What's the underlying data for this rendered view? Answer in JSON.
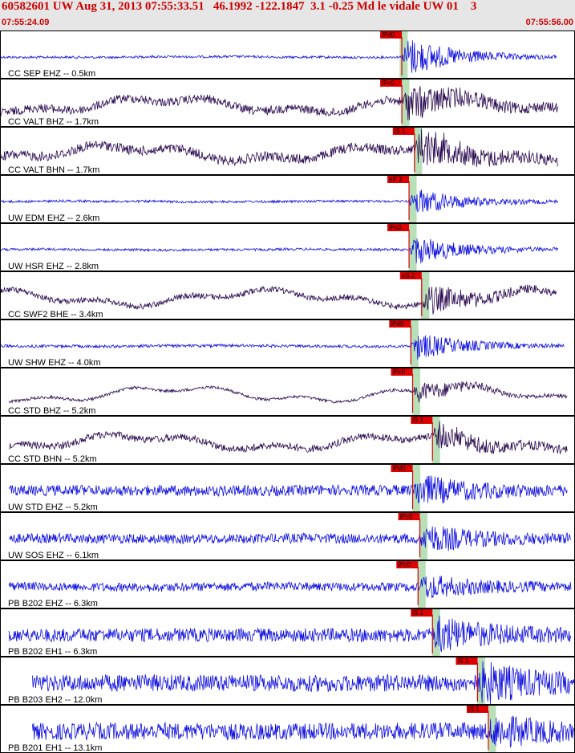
{
  "header": {
    "title": "60582601 UW Aug 31, 2013 07:55:33.51   46.1992 -122.1847  3.1 -0.25 Md le vidale UW 01    3",
    "start_time": "07:55:24.09",
    "end_time": "07:55:56.00"
  },
  "colors": {
    "blue": "#1010e0",
    "dark": "#2a0a50",
    "pick": "#dd0000",
    "band": "#b8e0b8",
    "frame": "#000000"
  },
  "chart_data": {
    "type": "line",
    "xlabel": "",
    "ylabel": "",
    "x_range_s": [
      0,
      31.91
    ],
    "traces": [
      {
        "label": "CC SEP EHZ -- 0.5km",
        "pick": "iPd0",
        "pick_t": 22.3,
        "band_t": 22.4,
        "amp": 0.9,
        "noise": 0.05,
        "color": "blue",
        "t0": 0,
        "t1": 30.9
      },
      {
        "label": "CC VALT BHZ -- 1.7km",
        "pick": "iPc0",
        "pick_t": 22.3,
        "band_t": 22.5,
        "amp": 0.75,
        "noise": 0.18,
        "color": "dark",
        "t0": 0,
        "t1": 31.0
      },
      {
        "label": "CC VALT BHN -- 1.7km",
        "pick": "iS 1",
        "pick_t": 23.0,
        "band_t": 23.2,
        "amp": 0.8,
        "noise": 0.2,
        "color": "dark",
        "t0": 0,
        "t1": 31.0
      },
      {
        "label": "UW EDM EHZ -- 2.6km",
        "pick": "eP 3",
        "pick_t": 22.7,
        "band_t": 22.9,
        "amp": 0.6,
        "noise": 0.05,
        "color": "blue",
        "t0": 0,
        "t1": 31.0
      },
      {
        "label": "UW HSR EHZ -- 2.8km",
        "pick": "iPc0",
        "pick_t": 22.7,
        "band_t": 22.9,
        "amp": 0.65,
        "noise": 0.05,
        "color": "blue",
        "t0": 0,
        "t1": 31.0
      },
      {
        "label": "CC SWF2 BHE -- 3.4km",
        "pick": "eS 2",
        "pick_t": 23.4,
        "band_t": 23.6,
        "amp": 0.6,
        "noise": 0.12,
        "color": "dark",
        "t0": 0,
        "t1": 30.9
      },
      {
        "label": "UW SHW EHZ -- 4.0km",
        "pick": "iPd0",
        "pick_t": 22.8,
        "band_t": 23.0,
        "amp": 0.6,
        "noise": 0.06,
        "color": "blue",
        "t0": 0,
        "t1": 31.3
      },
      {
        "label": "CC STD BHZ -- 5.2km",
        "pick": "iPc0",
        "pick_t": 22.9,
        "band_t": 23.1,
        "amp": 0.45,
        "noise": 0.06,
        "color": "dark",
        "t0": 0.5,
        "t1": 31.5
      },
      {
        "label": "CC STD BHN -- 5.2km",
        "pick": "iS 1",
        "pick_t": 24.0,
        "band_t": 24.2,
        "amp": 0.5,
        "noise": 0.15,
        "color": "dark",
        "t0": 0.5,
        "t1": 31.5
      },
      {
        "label": "UW STD EHZ -- 5.2km",
        "pick": "iPd0",
        "pick_t": 22.9,
        "band_t": 23.1,
        "amp": 0.6,
        "noise": 0.22,
        "color": "blue",
        "t0": 0.5,
        "t1": 31.5
      },
      {
        "label": "UW SOS EHZ -- 6.1km",
        "pick": "iPc0",
        "pick_t": 23.3,
        "band_t": 23.5,
        "amp": 0.55,
        "noise": 0.2,
        "color": "blue",
        "t0": 0.5,
        "t1": 31.7
      },
      {
        "label": "PB B202 EHZ -- 6.3km",
        "pick": "iPc0",
        "pick_t": 23.2,
        "band_t": 23.4,
        "amp": 0.45,
        "noise": 0.18,
        "color": "blue",
        "t0": 0.5,
        "t1": 31.7
      },
      {
        "label": "PB B202 EH1 -- 6.3km",
        "pick": "iS 1",
        "pick_t": 24.0,
        "band_t": 24.2,
        "amp": 0.65,
        "noise": 0.28,
        "color": "blue",
        "t0": 0.5,
        "t1": 31.7
      },
      {
        "label": "PB B203 EH2 -- 12.0km",
        "pick": "iS 1",
        "pick_t": 26.5,
        "band_t": 26.7,
        "amp": 0.75,
        "noise": 0.35,
        "color": "blue",
        "t0": 1.8,
        "t1": 31.91
      },
      {
        "label": "PB B201 EH1 -- 13.1km",
        "pick": "iS 1",
        "pick_t": 27.1,
        "band_t": 27.3,
        "amp": 0.5,
        "noise": 0.35,
        "color": "blue",
        "t0": 1.8,
        "t1": 31.91
      }
    ]
  }
}
